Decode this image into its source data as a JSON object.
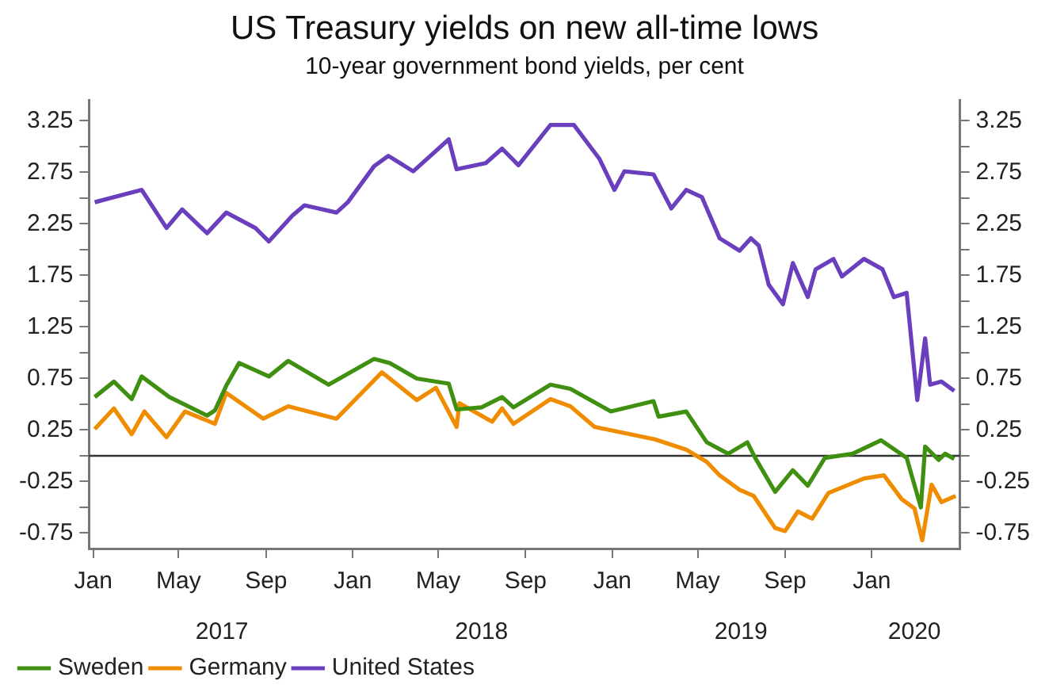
{
  "chart_data": {
    "type": "line",
    "title": "US Treasury yields on new all-time lows",
    "subtitle": "10-year government bond yields, per cent",
    "xlim": [
      "2016-12-26",
      "2020-05-04"
    ],
    "xticks": [
      {
        "value": "2017-01-01",
        "label": "Jan"
      },
      {
        "value": "2017-05-01",
        "label": "May"
      },
      {
        "value": "2017-09-01",
        "label": "Sep"
      },
      {
        "value": "2018-01-01",
        "label": "Jan"
      },
      {
        "value": "2018-05-01",
        "label": "May"
      },
      {
        "value": "2018-09-01",
        "label": "Sep"
      },
      {
        "value": "2019-01-01",
        "label": "Jan"
      },
      {
        "value": "2019-05-01",
        "label": "May"
      },
      {
        "value": "2019-09-01",
        "label": "Sep"
      },
      {
        "value": "2020-01-01",
        "label": "Jan"
      }
    ],
    "x2lim": [
      "2016-12-26",
      "2020-05-04"
    ],
    "x2ticks": [
      {
        "value": "2017-07-01",
        "label": "2017"
      },
      {
        "value": "2018-07-01",
        "label": "2018"
      },
      {
        "value": "2019-07-01",
        "label": "2019"
      },
      {
        "value": "2020-03-01",
        "label": "2020"
      }
    ],
    "ylim": [
      -0.9,
      3.45
    ],
    "yticks": [
      {
        "value": -0.75,
        "label": "-0.75"
      },
      {
        "value": -0.5,
        "label": null
      },
      {
        "value": -0.25,
        "label": "-0.25"
      },
      {
        "value": 0,
        "label": null
      },
      {
        "value": 0.25,
        "label": "0.25"
      },
      {
        "value": 0.5,
        "label": null
      },
      {
        "value": 0.75,
        "label": "0.75"
      },
      {
        "value": 1,
        "label": null
      },
      {
        "value": 1.25,
        "label": "1.25"
      },
      {
        "value": 1.5,
        "label": null
      },
      {
        "value": 1.75,
        "label": "1.75"
      },
      {
        "value": 2,
        "label": null
      },
      {
        "value": 2.25,
        "label": "2.25"
      },
      {
        "value": 2.5,
        "label": null
      },
      {
        "value": 2.75,
        "label": "2.75"
      },
      {
        "value": 3,
        "label": null
      },
      {
        "value": 3.25,
        "label": "3.25"
      }
    ],
    "y2lim": [
      -0.9,
      3.45
    ],
    "y2ticks": [
      {
        "value": -0.75,
        "label": "-0.75"
      },
      {
        "value": -0.5,
        "label": null
      },
      {
        "value": -0.25,
        "label": "-0.25"
      },
      {
        "value": 0,
        "label": null
      },
      {
        "value": 0.25,
        "label": "0.25"
      },
      {
        "value": 0.5,
        "label": null
      },
      {
        "value": 0.75,
        "label": "0.75"
      },
      {
        "value": 1,
        "label": null
      },
      {
        "value": 1.25,
        "label": "1.25"
      },
      {
        "value": 1.5,
        "label": null
      },
      {
        "value": 1.75,
        "label": "1.75"
      },
      {
        "value": 2,
        "label": null
      },
      {
        "value": 2.25,
        "label": "2.25"
      },
      {
        "value": 2.5,
        "label": null
      },
      {
        "value": 2.75,
        "label": "2.75"
      },
      {
        "value": 3,
        "label": null
      },
      {
        "value": 3.25,
        "label": "3.25"
      }
    ],
    "grid": false,
    "legend": "bottom left",
    "marker": "none",
    "line_style": "solid",
    "ref_lines": [
      {
        "axis": "y",
        "value": 0,
        "color": "#333333"
      }
    ],
    "series": [
      {
        "name": "Sweden",
        "color": "#3f8f10",
        "x": [
          "2017-01-03",
          "2017-01-30",
          "2017-02-24",
          "2017-03-10",
          "2017-04-18",
          "2017-06-10",
          "2017-06-21",
          "2017-07-07",
          "2017-07-25",
          "2017-09-05",
          "2017-10-02",
          "2017-11-28",
          "2018-01-31",
          "2018-02-22",
          "2018-04-01",
          "2018-05-16",
          "2018-05-27",
          "2018-07-01",
          "2018-07-30",
          "2018-08-15",
          "2018-10-06",
          "2018-11-03",
          "2018-12-30",
          "2019-02-28",
          "2019-03-07",
          "2019-04-15",
          "2019-05-14",
          "2019-06-13",
          "2019-07-10",
          "2019-07-21",
          "2019-08-18",
          "2019-09-12",
          "2019-10-03",
          "2019-10-27",
          "2019-12-05",
          "2020-01-14",
          "2020-02-19",
          "2020-03-10",
          "2020-03-16",
          "2020-04-04",
          "2020-04-13",
          "2020-04-26"
        ],
        "values": [
          0.57,
          0.72,
          0.55,
          0.77,
          0.57,
          0.39,
          0.44,
          0.68,
          0.9,
          0.77,
          0.92,
          0.69,
          0.94,
          0.9,
          0.75,
          0.7,
          0.45,
          0.47,
          0.57,
          0.47,
          0.69,
          0.65,
          0.43,
          0.53,
          0.38,
          0.43,
          0.13,
          0.02,
          0.13,
          -0.02,
          -0.35,
          -0.14,
          -0.29,
          -0.02,
          0.02,
          0.15,
          -0.02,
          -0.5,
          0.09,
          -0.04,
          0.02,
          -0.03
        ]
      },
      {
        "name": "Germany",
        "color": "#f08c00",
        "x": [
          "2017-01-03",
          "2017-01-30",
          "2017-02-24",
          "2017-03-14",
          "2017-04-14",
          "2017-05-10",
          "2017-06-21",
          "2017-07-07",
          "2017-08-28",
          "2017-10-02",
          "2017-12-09",
          "2018-02-11",
          "2018-04-01",
          "2018-04-28",
          "2018-05-27",
          "2018-05-31",
          "2018-07-16",
          "2018-07-30",
          "2018-08-15",
          "2018-10-06",
          "2018-11-03",
          "2018-12-07",
          "2019-03-02",
          "2019-04-15",
          "2019-05-14",
          "2019-06-01",
          "2019-06-29",
          "2019-07-19",
          "2019-08-18",
          "2019-09-01",
          "2019-09-19",
          "2019-10-09",
          "2019-11-01",
          "2019-12-21",
          "2020-01-18",
          "2020-02-12",
          "2020-03-01",
          "2020-03-12",
          "2020-03-25",
          "2020-04-08",
          "2020-04-28"
        ],
        "values": [
          0.26,
          0.46,
          0.21,
          0.43,
          0.18,
          0.43,
          0.31,
          0.61,
          0.36,
          0.48,
          0.36,
          0.81,
          0.54,
          0.66,
          0.28,
          0.51,
          0.33,
          0.46,
          0.31,
          0.55,
          0.48,
          0.28,
          0.16,
          0.06,
          -0.06,
          -0.19,
          -0.33,
          -0.39,
          -0.7,
          -0.73,
          -0.54,
          -0.61,
          -0.36,
          -0.22,
          -0.19,
          -0.42,
          -0.51,
          -0.82,
          -0.28,
          -0.45,
          -0.39
        ]
      },
      {
        "name": "United States",
        "color": "#6a3fbd",
        "x": [
          "2017-01-03",
          "2017-03-10",
          "2017-04-14",
          "2017-05-06",
          "2017-06-10",
          "2017-07-07",
          "2017-08-17",
          "2017-09-05",
          "2017-10-08",
          "2017-10-25",
          "2017-12-09",
          "2017-12-25",
          "2018-01-31",
          "2018-02-20",
          "2018-03-27",
          "2018-05-16",
          "2018-05-27",
          "2018-07-07",
          "2018-07-30",
          "2018-08-22",
          "2018-10-06",
          "2018-11-08",
          "2018-12-14",
          "2019-01-04",
          "2019-01-18",
          "2019-02-28",
          "2019-03-25",
          "2019-04-15",
          "2019-05-07",
          "2019-06-01",
          "2019-06-29",
          "2019-07-15",
          "2019-07-26",
          "2019-08-09",
          "2019-08-29",
          "2019-09-12",
          "2019-10-03",
          "2019-10-14",
          "2019-11-08",
          "2019-11-20",
          "2019-12-21",
          "2020-01-16",
          "2020-02-01",
          "2020-02-19",
          "2020-03-05",
          "2020-03-16",
          "2020-03-23",
          "2020-04-08",
          "2020-04-26"
        ],
        "values": [
          2.46,
          2.58,
          2.21,
          2.39,
          2.16,
          2.36,
          2.21,
          2.08,
          2.33,
          2.43,
          2.36,
          2.46,
          2.81,
          2.91,
          2.76,
          3.07,
          2.78,
          2.84,
          2.98,
          2.82,
          3.21,
          3.21,
          2.88,
          2.58,
          2.76,
          2.73,
          2.4,
          2.58,
          2.51,
          2.11,
          1.99,
          2.11,
          2.04,
          1.66,
          1.47,
          1.87,
          1.54,
          1.81,
          1.91,
          1.74,
          1.91,
          1.81,
          1.54,
          1.58,
          0.54,
          1.14,
          0.69,
          0.72,
          0.63
        ]
      }
    ]
  }
}
